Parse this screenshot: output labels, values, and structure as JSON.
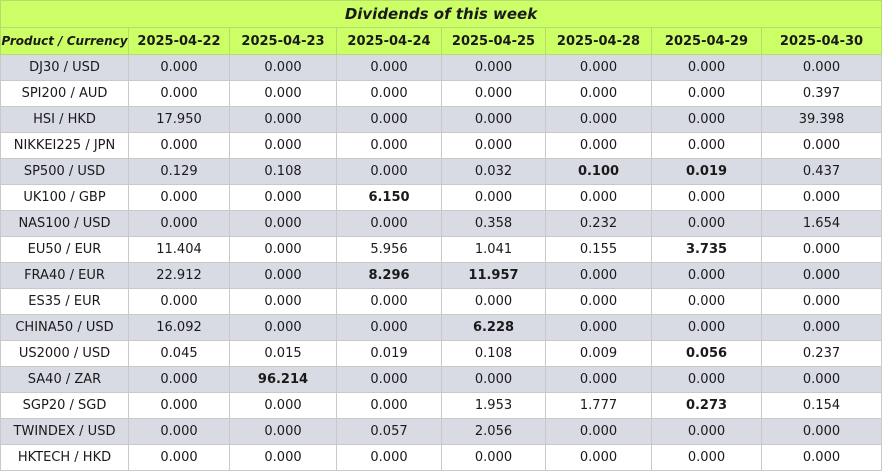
{
  "title": "Dividends of this week",
  "header": {
    "product_label": "Product / Currency",
    "dates": [
      "2025-04-22",
      "2025-04-23",
      "2025-04-24",
      "2025-04-25",
      "2025-04-28",
      "2025-04-29",
      "2025-04-30"
    ]
  },
  "rows": [
    {
      "product": "DJ30 / USD",
      "values": [
        "0.000",
        "0.000",
        "0.000",
        "0.000",
        "0.000",
        "0.000",
        "0.000"
      ],
      "bold": [
        false,
        false,
        false,
        false,
        false,
        false,
        false
      ]
    },
    {
      "product": "SPI200 / AUD",
      "values": [
        "0.000",
        "0.000",
        "0.000",
        "0.000",
        "0.000",
        "0.000",
        "0.397"
      ],
      "bold": [
        false,
        false,
        false,
        false,
        false,
        false,
        false
      ]
    },
    {
      "product": "HSI / HKD",
      "values": [
        "17.950",
        "0.000",
        "0.000",
        "0.000",
        "0.000",
        "0.000",
        "39.398"
      ],
      "bold": [
        false,
        false,
        false,
        false,
        false,
        false,
        false
      ]
    },
    {
      "product": "NIKKEI225 / JPN",
      "values": [
        "0.000",
        "0.000",
        "0.000",
        "0.000",
        "0.000",
        "0.000",
        "0.000"
      ],
      "bold": [
        false,
        false,
        false,
        false,
        false,
        false,
        false
      ]
    },
    {
      "product": "SP500 / USD",
      "values": [
        "0.129",
        "0.108",
        "0.000",
        "0.032",
        "0.100",
        "0.019",
        "0.437"
      ],
      "bold": [
        false,
        false,
        false,
        false,
        true,
        true,
        false
      ]
    },
    {
      "product": "UK100 / GBP",
      "values": [
        "0.000",
        "0.000",
        "6.150",
        "0.000",
        "0.000",
        "0.000",
        "0.000"
      ],
      "bold": [
        false,
        false,
        true,
        false,
        false,
        false,
        false
      ]
    },
    {
      "product": "NAS100 / USD",
      "values": [
        "0.000",
        "0.000",
        "0.000",
        "0.358",
        "0.232",
        "0.000",
        "1.654"
      ],
      "bold": [
        false,
        false,
        false,
        false,
        false,
        false,
        false
      ]
    },
    {
      "product": "EU50 / EUR",
      "values": [
        "11.404",
        "0.000",
        "5.956",
        "1.041",
        "0.155",
        "3.735",
        "0.000"
      ],
      "bold": [
        false,
        false,
        false,
        false,
        false,
        true,
        false
      ]
    },
    {
      "product": "FRA40 / EUR",
      "values": [
        "22.912",
        "0.000",
        "8.296",
        "11.957",
        "0.000",
        "0.000",
        "0.000"
      ],
      "bold": [
        false,
        false,
        true,
        true,
        false,
        false,
        false
      ]
    },
    {
      "product": "ES35 / EUR",
      "values": [
        "0.000",
        "0.000",
        "0.000",
        "0.000",
        "0.000",
        "0.000",
        "0.000"
      ],
      "bold": [
        false,
        false,
        false,
        false,
        false,
        false,
        false
      ]
    },
    {
      "product": "CHINA50 / USD",
      "values": [
        "16.092",
        "0.000",
        "0.000",
        "6.228",
        "0.000",
        "0.000",
        "0.000"
      ],
      "bold": [
        false,
        false,
        false,
        true,
        false,
        false,
        false
      ]
    },
    {
      "product": "US2000 / USD",
      "values": [
        "0.045",
        "0.015",
        "0.019",
        "0.108",
        "0.009",
        "0.056",
        "0.237"
      ],
      "bold": [
        false,
        false,
        false,
        false,
        false,
        true,
        false
      ]
    },
    {
      "product": "SA40 / ZAR",
      "values": [
        "0.000",
        "96.214",
        "0.000",
        "0.000",
        "0.000",
        "0.000",
        "0.000"
      ],
      "bold": [
        false,
        true,
        false,
        false,
        false,
        false,
        false
      ]
    },
    {
      "product": "SGP20 / SGD",
      "values": [
        "0.000",
        "0.000",
        "0.000",
        "1.953",
        "1.777",
        "0.273",
        "0.154"
      ],
      "bold": [
        false,
        false,
        false,
        false,
        false,
        true,
        false
      ]
    },
    {
      "product": "TWINDEX / USD",
      "values": [
        "0.000",
        "0.000",
        "0.057",
        "2.056",
        "0.000",
        "0.000",
        "0.000"
      ],
      "bold": [
        false,
        false,
        false,
        false,
        false,
        false,
        false
      ]
    },
    {
      "product": "HKTECH / HKD",
      "values": [
        "0.000",
        "0.000",
        "0.000",
        "0.000",
        "0.000",
        "0.000",
        "0.000"
      ],
      "bold": [
        false,
        false,
        false,
        false,
        false,
        false,
        false
      ]
    }
  ]
}
